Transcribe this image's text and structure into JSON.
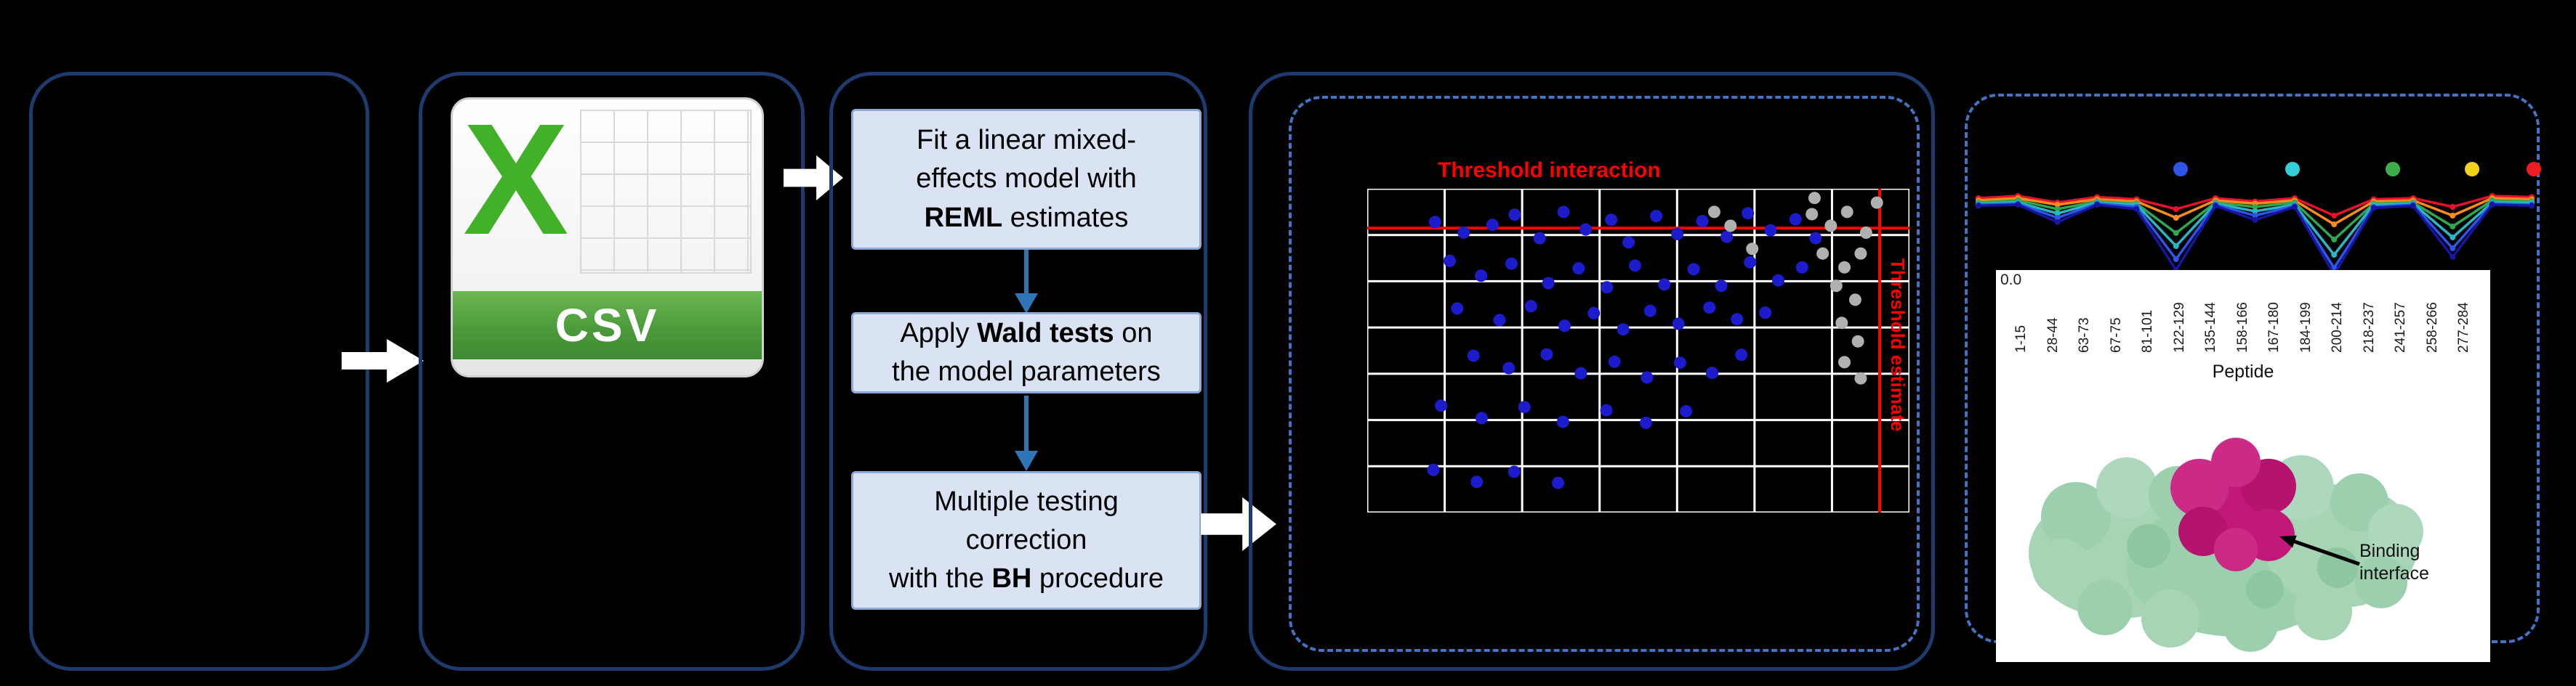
{
  "colors": {
    "background": "#000000",
    "panel_border": "#1f3a6e",
    "dashed_border": "#4472c4",
    "step_fill": "#dae3f3",
    "step_border": "#8eaadb",
    "block_arrow": "#ffffff",
    "step_arrow_blue": "#2e75b6",
    "threshold_red": "#ff0000",
    "csv_green": "#43b02a",
    "csv_band_green": "#4d9a3c"
  },
  "csv": {
    "letter": "X",
    "label": "CSV"
  },
  "steps": [
    {
      "pre": "Fit a linear mixed-\neffects model with\n",
      "bold": "REML",
      "post": " estimates"
    },
    {
      "pre": "Apply ",
      "bold": "Wald tests",
      "post": " on\nthe model parameters"
    },
    {
      "pre": "Multiple testing\ncorrection\nwith the ",
      "bold": "BH",
      "post": " procedure"
    }
  ],
  "chart_data": [
    {
      "type": "scatter",
      "title": "Threshold interaction",
      "threshold_h_label": "Threshold interaction",
      "threshold_v_label": "Threshold estimate",
      "x_range": [
        0,
        10
      ],
      "y_range": [
        0,
        7
      ],
      "grid": true,
      "grid_cols": 7,
      "grid_rows": 7,
      "grid_color": "#ffffff",
      "threshold_h": 6.15,
      "threshold_v": 9.45,
      "threshold_color": "#ff0000",
      "series": [
        {
          "name": "significant-points",
          "color": "#1c1ccd",
          "points": [
            [
              1.25,
              6.28
            ],
            [
              1.78,
              6.05
            ],
            [
              2.31,
              6.22
            ],
            [
              2.72,
              6.44
            ],
            [
              3.18,
              5.93
            ],
            [
              3.62,
              6.5
            ],
            [
              4.03,
              6.12
            ],
            [
              4.5,
              6.33
            ],
            [
              4.82,
              5.84
            ],
            [
              5.33,
              6.41
            ],
            [
              5.72,
              6.02
            ],
            [
              6.18,
              6.3
            ],
            [
              6.63,
              5.96
            ],
            [
              7.02,
              6.47
            ],
            [
              7.44,
              6.1
            ],
            [
              7.9,
              6.34
            ],
            [
              8.27,
              5.93
            ],
            [
              1.52,
              5.44
            ],
            [
              2.1,
              5.12
            ],
            [
              2.66,
              5.38
            ],
            [
              3.34,
              4.96
            ],
            [
              3.9,
              5.28
            ],
            [
              4.42,
              4.87
            ],
            [
              4.94,
              5.34
            ],
            [
              5.48,
              4.93
            ],
            [
              6.02,
              5.26
            ],
            [
              6.53,
              4.9
            ],
            [
              7.06,
              5.41
            ],
            [
              7.58,
              5.02
            ],
            [
              8.02,
              5.3
            ],
            [
              1.66,
              4.41
            ],
            [
              2.44,
              4.16
            ],
            [
              3.02,
              4.46
            ],
            [
              3.64,
              4.04
            ],
            [
              4.18,
              4.31
            ],
            [
              4.72,
              3.96
            ],
            [
              5.22,
              4.36
            ],
            [
              5.74,
              4.08
            ],
            [
              6.31,
              4.43
            ],
            [
              6.82,
              4.18
            ],
            [
              7.34,
              4.32
            ],
            [
              1.96,
              3.39
            ],
            [
              2.61,
              3.12
            ],
            [
              3.31,
              3.42
            ],
            [
              3.94,
              3.01
            ],
            [
              4.56,
              3.26
            ],
            [
              5.16,
              2.92
            ],
            [
              5.77,
              3.24
            ],
            [
              6.36,
              3.02
            ],
            [
              6.9,
              3.41
            ],
            [
              1.36,
              2.31
            ],
            [
              2.11,
              2.04
            ],
            [
              2.9,
              2.28
            ],
            [
              3.61,
              1.96
            ],
            [
              4.41,
              2.21
            ],
            [
              5.14,
              1.94
            ],
            [
              5.88,
              2.19
            ],
            [
              1.22,
              0.92
            ],
            [
              2.02,
              0.66
            ],
            [
              2.71,
              0.88
            ],
            [
              3.52,
              0.64
            ]
          ]
        },
        {
          "name": "non-significant-points",
          "color": "#b0b0b0",
          "points": [
            [
              8.2,
              6.45
            ],
            [
              8.55,
              6.2
            ],
            [
              8.85,
              6.5
            ],
            [
              9.2,
              6.05
            ],
            [
              8.4,
              5.6
            ],
            [
              8.8,
              5.3
            ],
            [
              9.1,
              5.6
            ],
            [
              8.65,
              4.9
            ],
            [
              9.0,
              4.6
            ],
            [
              8.75,
              4.1
            ],
            [
              9.05,
              3.7
            ],
            [
              8.8,
              3.25
            ],
            [
              9.1,
              2.9
            ],
            [
              7.1,
              5.7
            ],
            [
              6.7,
              6.2
            ],
            [
              6.4,
              6.5
            ],
            [
              9.4,
              6.7
            ],
            [
              8.25,
              6.8
            ]
          ]
        }
      ]
    },
    {
      "type": "line",
      "xlabel": "Peptide",
      "ytick": "0.0",
      "annotation": "Binding interface",
      "ylim": [
        -3.4,
        0.8
      ],
      "categories": [
        "1-15",
        "28-44",
        "63-73",
        "67-75",
        "81-101",
        "122-129",
        "135-144",
        "158-166",
        "167-180",
        "184-199",
        "200-214",
        "218-237",
        "241-257",
        "258-266",
        "277-284"
      ],
      "legend_dots": [
        {
          "color": "#2e55e8",
          "x_frac": 0.37
        },
        {
          "color": "#35cfd8",
          "x_frac": 0.565
        },
        {
          "color": "#3fae4a",
          "x_frac": 0.74
        },
        {
          "color": "#f2d21f",
          "x_frac": 0.878
        },
        {
          "color": "#ed1c24",
          "x_frac": 0.985
        }
      ],
      "series": [
        {
          "name": "red",
          "color": "#e8112d",
          "values": [
            0.3,
            0.4,
            0.1,
            0.35,
            0.25,
            -0.2,
            0.3,
            0.15,
            0.3,
            -0.5,
            0.25,
            0.3,
            -0.1,
            0.4,
            0.35
          ]
        },
        {
          "name": "orange",
          "color": "#ff8c1a",
          "values": [
            0.2,
            0.3,
            0.0,
            0.25,
            0.15,
            -0.6,
            0.2,
            0.05,
            0.2,
            -0.9,
            0.15,
            0.2,
            -0.5,
            0.3,
            0.25
          ]
        },
        {
          "name": "green",
          "color": "#2da84f",
          "values": [
            0.1,
            0.2,
            -0.2,
            0.15,
            0.05,
            -1.3,
            0.1,
            -0.1,
            0.1,
            -1.6,
            0.05,
            0.1,
            -1.0,
            0.2,
            0.15
          ]
        },
        {
          "name": "cyan",
          "color": "#29b6c5",
          "values": [
            0.05,
            0.1,
            -0.4,
            0.1,
            0.0,
            -1.9,
            0.05,
            -0.3,
            0.0,
            -2.3,
            0.0,
            0.05,
            -1.5,
            0.1,
            0.1
          ]
        },
        {
          "name": "blue",
          "color": "#2e55e8",
          "values": [
            0.0,
            0.05,
            -0.6,
            0.05,
            -0.1,
            -2.5,
            0.0,
            -0.5,
            -0.05,
            -2.9,
            -0.1,
            0.0,
            -2.0,
            0.05,
            0.0
          ]
        },
        {
          "name": "navy",
          "color": "#1616a0",
          "values": [
            -0.05,
            0.0,
            -0.8,
            0.0,
            -0.2,
            -3.0,
            -0.05,
            -0.7,
            -0.1,
            -3.2,
            -0.15,
            -0.05,
            -2.4,
            0.0,
            -0.05
          ]
        }
      ]
    }
  ]
}
